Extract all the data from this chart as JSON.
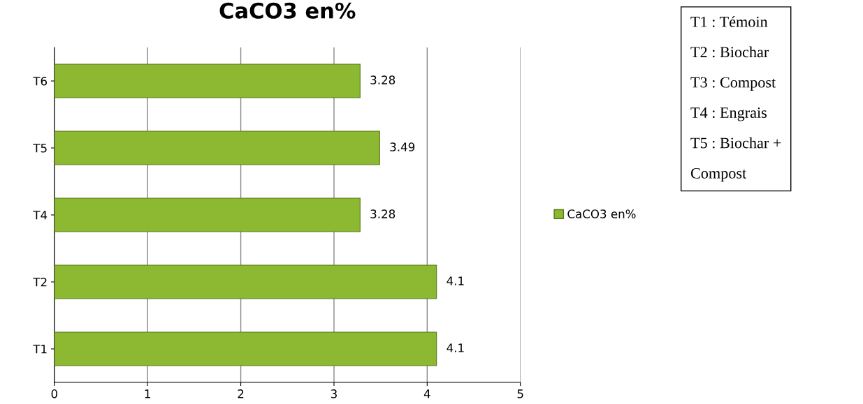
{
  "chart_data": {
    "type": "bar",
    "orientation": "horizontal",
    "title": "CaCO3 en%",
    "categories": [
      "T6",
      "T5",
      "T4",
      "T2",
      "T1"
    ],
    "series": [
      {
        "name": "CaCO3 en%",
        "color": "#8db832",
        "values": [
          3.28,
          3.49,
          3.28,
          4.1,
          4.1
        ]
      }
    ],
    "xlim": [
      0,
      5
    ],
    "xticks": [
      0,
      1,
      2,
      3,
      4,
      5
    ],
    "grid": "x",
    "legend": "right",
    "data_labels": true,
    "annotations": [
      "T1 : Témoin\n\nT2 : Biochar\n\nT3 : Compost\n\nT4 : Engrais\n\nT5 : Biochar +\n\nCompost"
    ]
  }
}
